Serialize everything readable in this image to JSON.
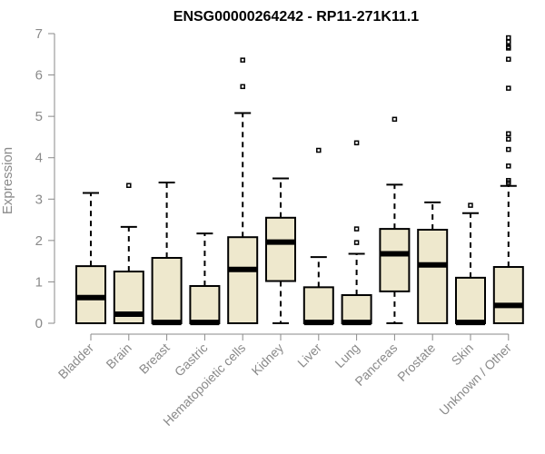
{
  "chart_data": {
    "type": "boxplot",
    "title": "ENSG00000264242 - RP11-271K11.1",
    "xlabel": "",
    "ylabel": "Expression",
    "ylim": [
      0,
      7
    ],
    "yticks": [
      0,
      1,
      2,
      3,
      4,
      5,
      6,
      7
    ],
    "box_color": "#EEE8CD",
    "categories": [
      "Bladder",
      "Brain",
      "Breast",
      "Gastric",
      "Hematopoietic cells",
      "Kidney",
      "Liver",
      "Lung",
      "Pancreas",
      "Prostate",
      "Skin",
      "Unknown / Other"
    ],
    "boxes": [
      {
        "name": "Bladder",
        "min": 0,
        "q1": 0,
        "median": 0.62,
        "q3": 1.38,
        "max": 3.15,
        "outliers": []
      },
      {
        "name": "Brain",
        "min": 0,
        "q1": 0,
        "median": 0.22,
        "q3": 1.25,
        "max": 2.33,
        "outliers": [
          3.33
        ]
      },
      {
        "name": "Breast",
        "min": 0,
        "q1": 0,
        "median": 0.02,
        "q3": 1.58,
        "max": 3.4,
        "outliers": []
      },
      {
        "name": "Gastric",
        "min": 0,
        "q1": 0,
        "median": 0.02,
        "q3": 0.9,
        "max": 2.17,
        "outliers": []
      },
      {
        "name": "Hematopoietic cells",
        "min": 0,
        "q1": 0,
        "median": 1.3,
        "q3": 2.08,
        "max": 5.08,
        "outliers": [
          5.72,
          6.36
        ]
      },
      {
        "name": "Kidney",
        "min": 0,
        "q1": 1.02,
        "median": 1.96,
        "q3": 2.55,
        "max": 3.5,
        "outliers": []
      },
      {
        "name": "Liver",
        "min": 0,
        "q1": 0,
        "median": 0.02,
        "q3": 0.87,
        "max": 1.6,
        "outliers": [
          4.18
        ]
      },
      {
        "name": "Lung",
        "min": 0,
        "q1": 0,
        "median": 0.02,
        "q3": 0.68,
        "max": 1.68,
        "outliers": [
          1.95,
          2.28,
          4.36
        ]
      },
      {
        "name": "Pancreas",
        "min": 0,
        "q1": 0.77,
        "median": 1.68,
        "q3": 2.28,
        "max": 3.35,
        "outliers": [
          4.93
        ]
      },
      {
        "name": "Prostate",
        "min": 0,
        "q1": 0,
        "median": 1.41,
        "q3": 2.26,
        "max": 2.92,
        "outliers": []
      },
      {
        "name": "Skin",
        "min": 0,
        "q1": 0,
        "median": 0.02,
        "q3": 1.1,
        "max": 2.66,
        "outliers": [
          2.85
        ]
      },
      {
        "name": "Unknown / Other",
        "min": 0,
        "q1": 0,
        "median": 0.43,
        "q3": 1.36,
        "max": 3.32,
        "outliers": [
          3.4,
          3.45,
          3.8,
          4.2,
          4.45,
          4.58,
          5.68,
          6.38,
          6.65,
          6.68,
          6.8,
          6.9
        ]
      }
    ]
  }
}
